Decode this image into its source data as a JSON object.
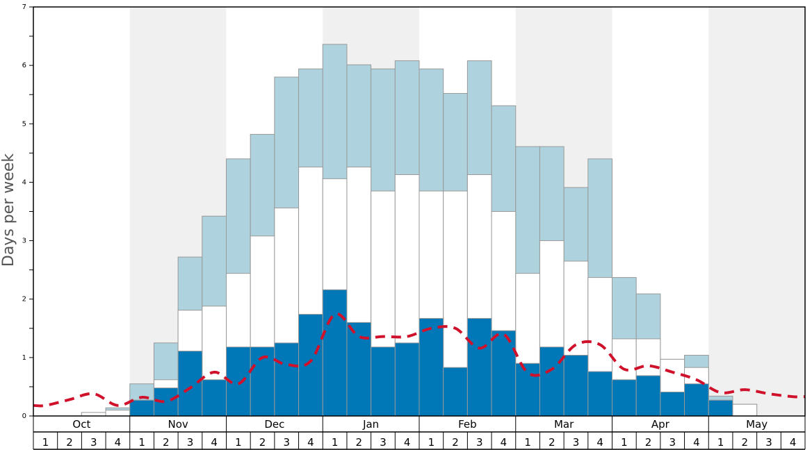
{
  "chart_data": {
    "type": "bar",
    "ylabel": "Days per week",
    "ylim": [
      0,
      7
    ],
    "y_ticks": [
      "0",
      "1",
      "2",
      "3",
      "4",
      "5",
      "6",
      "7"
    ],
    "months": [
      "Oct",
      "Nov",
      "Dec",
      "Jan",
      "Feb",
      "Mar",
      "Apr",
      "May"
    ],
    "weeks": [
      "1",
      "2",
      "3",
      "4",
      "1",
      "2",
      "3",
      "4",
      "1",
      "2",
      "3",
      "4",
      "1",
      "2",
      "3",
      "4",
      "1",
      "2",
      "3",
      "4",
      "1",
      "2",
      "3",
      "4",
      "1",
      "2",
      "3",
      "4",
      "1",
      "2",
      "3",
      "4"
    ],
    "series": [
      {
        "values": [
          0,
          0,
          0,
          0,
          0.27,
          0.48,
          1.11,
          0.62,
          1.18,
          1.18,
          1.25,
          1.74,
          2.16,
          1.6,
          1.18,
          1.25,
          1.67,
          0.83,
          1.67,
          1.46,
          0.9,
          1.18,
          1.04,
          0.76,
          0.62,
          0.69,
          0.41,
          0.55,
          0.27,
          0,
          0,
          0
        ]
      },
      {
        "values": [
          0,
          0,
          0.06,
          0.1,
          0.27,
          0.62,
          1.81,
          1.88,
          2.44,
          3.08,
          3.56,
          4.26,
          4.06,
          4.26,
          3.85,
          4.13,
          3.85,
          3.85,
          4.13,
          3.5,
          2.44,
          3.0,
          2.65,
          2.37,
          1.32,
          1.32,
          0.97,
          0.83,
          0.27,
          0.2,
          0,
          0
        ]
      },
      {
        "values": [
          0,
          0,
          0.06,
          0.14,
          0.55,
          1.25,
          2.72,
          3.42,
          4.4,
          4.82,
          5.8,
          5.94,
          6.36,
          6.01,
          5.94,
          6.08,
          5.94,
          5.52,
          6.08,
          5.31,
          4.61,
          4.61,
          3.91,
          4.4,
          2.37,
          2.09,
          0.97,
          1.04,
          0.34,
          0.2,
          0,
          0
        ]
      },
      {
        "values": [
          0.18,
          0.28,
          0.38,
          0.18,
          0.32,
          0.25,
          0.48,
          0.75,
          0.55,
          1.0,
          0.88,
          0.94,
          1.74,
          1.36,
          1.36,
          1.36,
          1.5,
          1.5,
          1.16,
          1.4,
          0.74,
          0.8,
          1.22,
          1.22,
          0.8,
          0.86,
          0.75,
          0.62,
          0.4,
          0.45,
          0.38,
          0.33
        ]
      }
    ],
    "colors": {
      "dark_fill": "#0077b6",
      "mid_fill": "#ffffff",
      "light_fill": "#aed3df",
      "bar_stroke": "#999999",
      "line": "#d0112b",
      "band": "#f0f0f0",
      "axis": "#000000"
    },
    "grid": false,
    "legend": "none"
  }
}
